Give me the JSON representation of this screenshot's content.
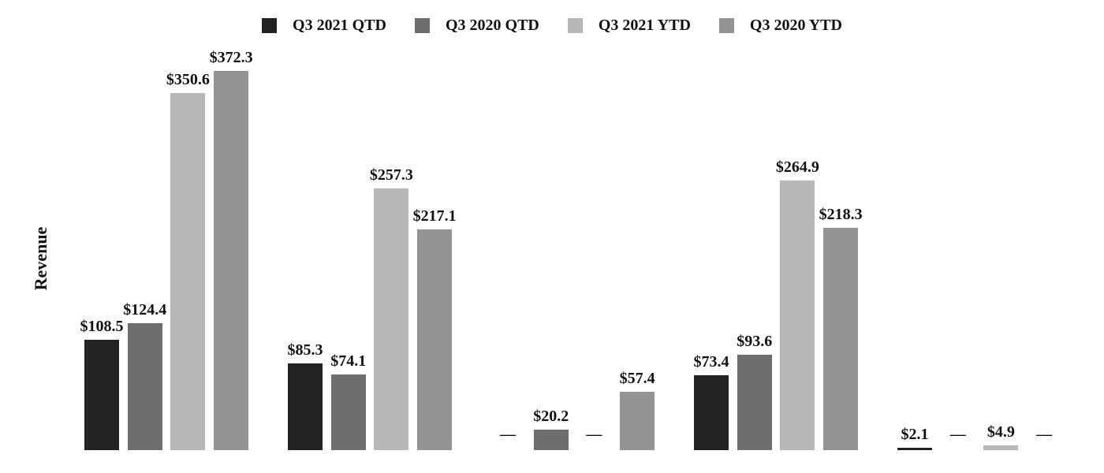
{
  "chart_data": {
    "type": "bar",
    "title": "",
    "xlabel": "",
    "ylabel": "Revenue",
    "categories": [
      "",
      "",
      "",
      "",
      ""
    ],
    "series": [
      {
        "name": "Q3 2021 QTD",
        "color": "#232323",
        "values": [
          108.5,
          85.3,
          null,
          73.4,
          2.1
        ]
      },
      {
        "name": "Q3 2020 QTD",
        "color": "#6e6e6e",
        "values": [
          124.4,
          74.1,
          20.2,
          93.6,
          null
        ]
      },
      {
        "name": "Q3 2021 YTD",
        "color": "#b7b7b7",
        "values": [
          350.6,
          257.3,
          null,
          264.9,
          4.9
        ]
      },
      {
        "name": "Q3 2020 YTD",
        "color": "#949494",
        "values": [
          372.3,
          217.1,
          57.4,
          218.3,
          null
        ]
      }
    ],
    "data_labels": [
      [
        "$108.5",
        "$124.4",
        "$350.6",
        "$372.3"
      ],
      [
        "$85.3",
        "$74.1",
        "$257.3",
        "$217.1"
      ],
      [
        "—",
        "$20.2",
        "—",
        "$57.4"
      ],
      [
        "$73.4",
        "$93.6",
        "$264.9",
        "$218.3"
      ],
      [
        "$2.1",
        "—",
        "$4.9",
        "—"
      ]
    ],
    "null_marker": "—",
    "ylim": [
      0,
      372.3
    ],
    "grid": false,
    "axis_lines": false,
    "legend_position": "top",
    "label_color": "#111111",
    "background_color": "#ffffff"
  }
}
